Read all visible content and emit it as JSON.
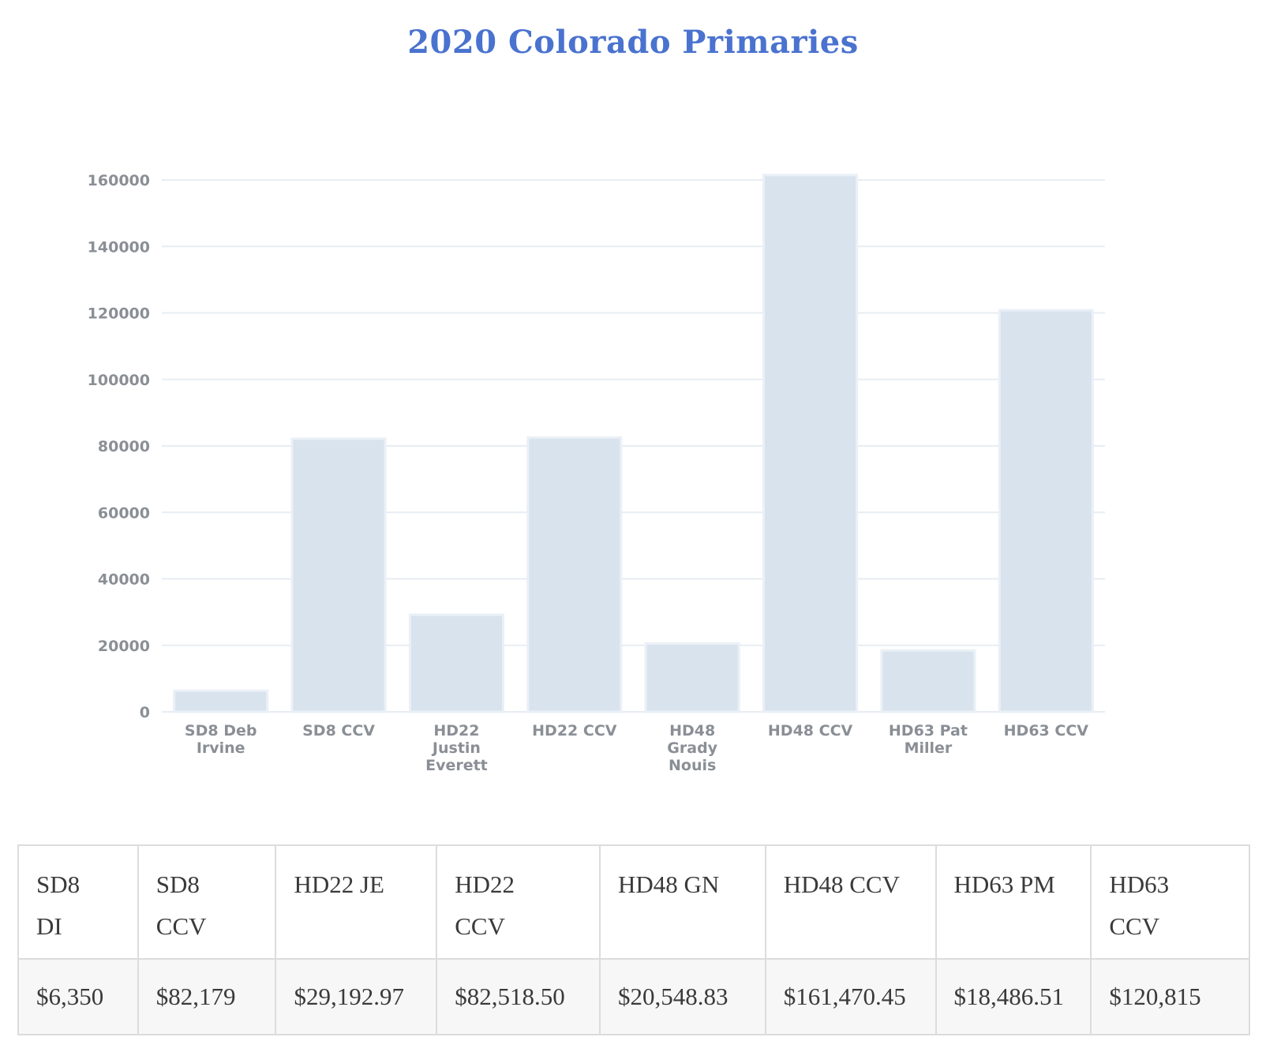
{
  "chart_data": {
    "type": "bar",
    "title": "2020 Colorado Primaries",
    "categories": [
      [
        "SD8 Deb",
        "Irvine"
      ],
      [
        "SD8 CCV"
      ],
      [
        "HD22",
        "Justin",
        "Everett"
      ],
      [
        "HD22 CCV"
      ],
      [
        "HD48",
        "Grady",
        "Nouis"
      ],
      [
        "HD48 CCV"
      ],
      [
        "HD63 Pat",
        "Miller"
      ],
      [
        "HD63 CCV"
      ]
    ],
    "values": [
      6350,
      82179,
      29192.97,
      82518.5,
      20548.83,
      161470.45,
      18486.51,
      120815
    ],
    "ylim": [
      0,
      160000
    ],
    "yticks": [
      0,
      20000,
      40000,
      60000,
      80000,
      100000,
      120000,
      140000,
      160000
    ],
    "xlabel": "",
    "ylabel": "",
    "grid": true,
    "colors": {
      "bar": "#d9e3ee",
      "title": "#4a72cf"
    }
  },
  "table": {
    "headers": [
      [
        "SD8",
        "DI"
      ],
      [
        "SD8",
        "CCV"
      ],
      [
        "HD22 JE"
      ],
      [
        "HD22",
        "CCV"
      ],
      [
        "HD48 GN"
      ],
      [
        "HD48 CCV"
      ],
      [
        "HD63 PM"
      ],
      [
        "HD63",
        "CCV"
      ]
    ],
    "values": [
      "$6,350",
      "$82,179",
      "$29,192.97",
      "$82,518.50",
      "$20,548.83",
      "$161,470.45",
      "$18,486.51",
      "$120,815"
    ]
  }
}
